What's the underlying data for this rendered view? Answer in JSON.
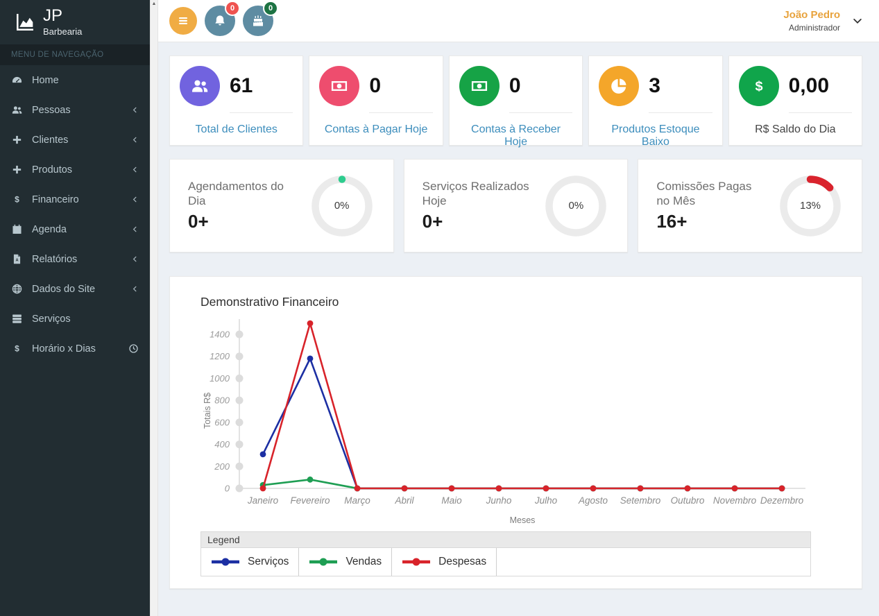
{
  "brand": {
    "title": "JP",
    "subtitle": "Barbearia"
  },
  "sidebar": {
    "nav_header": "MENU DE NAVEGAÇÃO",
    "items": [
      {
        "id": "home",
        "label": "Home",
        "icon": "gauge-icon",
        "chevron": false
      },
      {
        "id": "pessoas",
        "label": "Pessoas",
        "icon": "users-icon",
        "chevron": true
      },
      {
        "id": "clientes",
        "label": "Clientes",
        "icon": "plus-icon",
        "chevron": true
      },
      {
        "id": "produtos",
        "label": "Produtos",
        "icon": "plus-icon",
        "chevron": true
      },
      {
        "id": "financeiro",
        "label": "Financeiro",
        "icon": "dollar-icon",
        "chevron": true
      },
      {
        "id": "agenda",
        "label": "Agenda",
        "icon": "calendar-icon",
        "chevron": true
      },
      {
        "id": "relatorios",
        "label": "Relatórios",
        "icon": "pdf-icon",
        "chevron": true
      },
      {
        "id": "dados-do-site",
        "label": "Dados do Site",
        "icon": "globe-icon",
        "chevron": true
      },
      {
        "id": "servicos",
        "label": "Serviços",
        "icon": "server-icon",
        "chevron": false
      },
      {
        "id": "horario-x-dias",
        "label": "Horário x Dias",
        "icon": "dollar-icon",
        "chevron": false,
        "trailing_icon": "clock-icon"
      }
    ]
  },
  "topbar": {
    "buttons": [
      {
        "name": "menu-toggle-button",
        "icon": "hamburger-icon",
        "color": "#f0ac44",
        "size": "small"
      },
      {
        "name": "notifications-button",
        "icon": "bell-icon",
        "color": "#5e8ca2",
        "size": "big",
        "badge": "0",
        "badge_color": "#ef5350"
      },
      {
        "name": "birthdays-button",
        "icon": "cake-icon",
        "color": "#5e8ca2",
        "size": "big",
        "badge": "0",
        "badge_color": "#1d7343"
      }
    ],
    "user": {
      "name": "João Pedro",
      "role": "Administrador",
      "name_color": "#e8a33d"
    }
  },
  "stats": [
    {
      "value": "61",
      "label": "Total de Clientes",
      "icon": "users-icon",
      "icon_color": "#7163df",
      "label_color": "#3c8dbc"
    },
    {
      "value": "0",
      "label": "Contas à Pagar Hoje",
      "icon": "money-icon",
      "icon_color": "#ee4d6e",
      "label_color": "#3c8dbc"
    },
    {
      "value": "0",
      "label": "Contas à Receber Hoje",
      "icon": "money-icon",
      "icon_color": "#16a346",
      "label_color": "#3c8dbc"
    },
    {
      "value": "3",
      "label": "Produtos Estoque Baixo",
      "icon": "pie-icon",
      "icon_color": "#f4a62a",
      "label_color": "#3c8dbc"
    },
    {
      "value": "0,00",
      "label": "R$ Saldo do Dia",
      "icon": "dollar-icon",
      "icon_color": "#10a54b",
      "label_color": "#444444"
    }
  ],
  "progress": [
    {
      "title": "Agendamentos do Dia",
      "value": "0+",
      "percent": 0,
      "percent_label": "0%",
      "indicator": "dot",
      "color": "#2dcc8e"
    },
    {
      "title": "Serviços Realizados Hoje",
      "value": "0+",
      "percent": 0,
      "percent_label": "0%",
      "indicator": "none",
      "color": ""
    },
    {
      "title": "Comissões Pagas no Mês",
      "value": "16+",
      "percent": 13,
      "percent_label": "13%",
      "indicator": "arc",
      "color": "#d9232d"
    }
  ],
  "chart_data": {
    "type": "line",
    "title": "Demonstrativo Financeiro",
    "xlabel": "Meses",
    "ylabel": "Totais R$",
    "categories": [
      "Janeiro",
      "Fevereiro",
      "Março",
      "Abril",
      "Maio",
      "Junho",
      "Julho",
      "Agosto",
      "Setembro",
      "Outubro",
      "Novembro",
      "Dezembro"
    ],
    "series": [
      {
        "name": "Serviços",
        "color": "#1c2fa3",
        "values": [
          310,
          1180,
          0,
          0,
          0,
          0,
          0,
          0,
          0,
          0,
          0,
          0
        ]
      },
      {
        "name": "Vendas",
        "color": "#1e9e53",
        "values": [
          30,
          80,
          0,
          0,
          0,
          0,
          0,
          0,
          0,
          0,
          0,
          0
        ]
      },
      {
        "name": "Despesas",
        "color": "#d8232a",
        "values": [
          0,
          1500,
          0,
          0,
          0,
          0,
          0,
          0,
          0,
          0,
          0,
          0
        ]
      }
    ],
    "ylim": [
      0,
      1400
    ],
    "ytick_step": 200,
    "grid": false,
    "legend_title": "Legend",
    "legend_position": "bottom"
  }
}
